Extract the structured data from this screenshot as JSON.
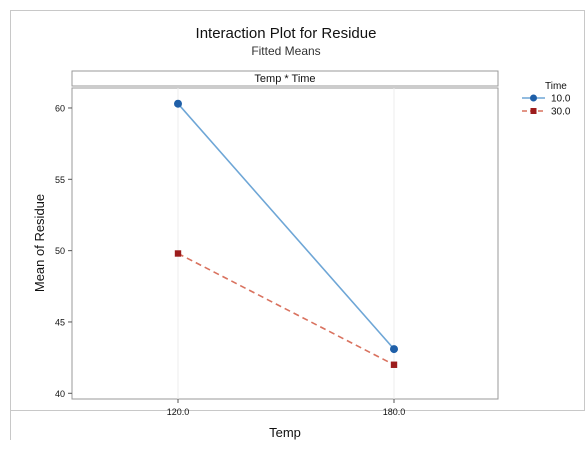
{
  "chart_data": {
    "type": "line",
    "title": "Interaction Plot for Residue",
    "subtitle": "Fitted Means",
    "panel_label": "Temp * Time",
    "xlabel": "Temp",
    "ylabel": "Mean of Residue",
    "categories": [
      "120.0",
      "180.0"
    ],
    "ylim": [
      39.6,
      61.4
    ],
    "yticks": [
      40,
      45,
      50,
      55,
      60
    ],
    "legend_title": "Time",
    "legend_position": "top-right",
    "grid": true,
    "series": [
      {
        "name": "10.0",
        "values": [
          60.3,
          43.1
        ],
        "color": "#6ea6d6",
        "marker_color": "#1f5fa8",
        "marker": "circle",
        "dash": "solid"
      },
      {
        "name": "30.0",
        "values": [
          49.8,
          42.0
        ],
        "color": "#d9725f",
        "marker_color": "#9c1c1c",
        "marker": "square",
        "dash": "dashed"
      }
    ]
  }
}
